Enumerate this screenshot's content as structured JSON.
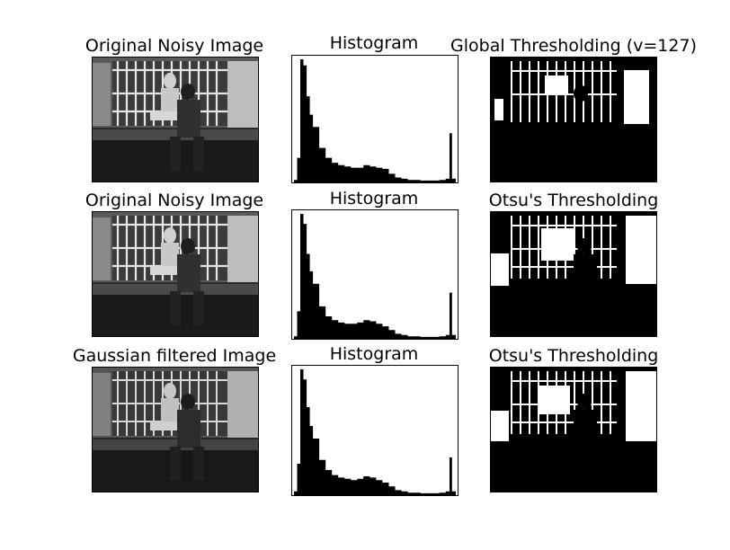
{
  "figure": {
    "rows": [
      {
        "image_title": "Original Noisy Image",
        "histogram_title": "Histogram",
        "threshold_title": "Global Thresholding (v=127)"
      },
      {
        "image_title": "Original Noisy Image",
        "histogram_title": "Histogram",
        "threshold_title": "Otsu's Thresholding"
      },
      {
        "image_title": "Gaussian filtered Image",
        "histogram_title": "Histogram",
        "threshold_title": "Otsu's Thresholding"
      }
    ]
  },
  "chart_data": [
    {
      "type": "bar",
      "title": "Histogram",
      "xlim": [
        0,
        256
      ],
      "x": [
        0,
        5,
        10,
        15,
        20,
        25,
        30,
        40,
        50,
        60,
        70,
        80,
        90,
        100,
        110,
        120,
        130,
        140,
        150,
        160,
        170,
        180,
        190,
        200,
        210,
        220,
        230,
        240,
        246,
        250,
        256
      ],
      "values": [
        2,
        20,
        100,
        95,
        70,
        55,
        45,
        28,
        20,
        16,
        14,
        13,
        12,
        12,
        14,
        13,
        12,
        11,
        7,
        4,
        3,
        2,
        2,
        1.5,
        1.5,
        1.5,
        2,
        3,
        40,
        3,
        0
      ]
    },
    {
      "type": "bar",
      "title": "Histogram",
      "xlim": [
        0,
        256
      ],
      "x": [
        0,
        5,
        10,
        15,
        20,
        25,
        30,
        40,
        50,
        60,
        70,
        80,
        90,
        100,
        110,
        120,
        130,
        140,
        150,
        160,
        170,
        180,
        190,
        200,
        210,
        220,
        230,
        240,
        246,
        250,
        256
      ],
      "values": [
        2,
        22,
        100,
        92,
        68,
        54,
        44,
        26,
        18,
        15,
        13,
        12,
        12,
        13,
        15,
        14,
        12,
        10,
        7,
        4,
        3,
        2,
        2,
        1.5,
        1.5,
        1.5,
        2,
        3,
        37,
        3,
        0
      ]
    },
    {
      "type": "bar",
      "title": "Histogram",
      "xlim": [
        0,
        256
      ],
      "x": [
        0,
        5,
        10,
        15,
        20,
        25,
        30,
        40,
        50,
        60,
        70,
        80,
        90,
        100,
        110,
        120,
        130,
        140,
        150,
        160,
        170,
        180,
        190,
        200,
        210,
        220,
        230,
        240,
        246,
        250,
        256
      ],
      "values": [
        3,
        25,
        100,
        92,
        70,
        55,
        45,
        28,
        20,
        16,
        14,
        13,
        12,
        13,
        15,
        14,
        12,
        10,
        7,
        4,
        3,
        2,
        2,
        1.5,
        1.5,
        1.5,
        2,
        3,
        30,
        3,
        0
      ]
    }
  ]
}
